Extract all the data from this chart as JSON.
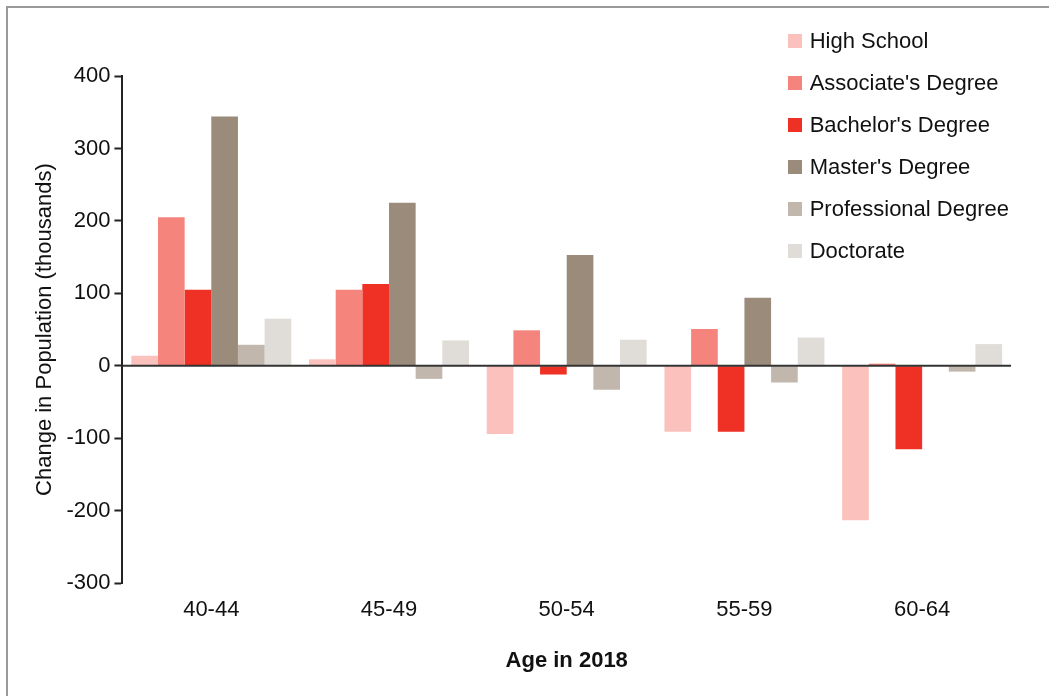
{
  "chart_data": {
    "type": "bar",
    "xlabel": "Age in 2018",
    "ylabel": "Change in Population (thousands)",
    "categories": [
      "40-44",
      "45-49",
      "50-54",
      "55-59",
      "60-64"
    ],
    "series": [
      {
        "name": "High School",
        "color": "#fbc1bd",
        "values": [
          14,
          9,
          -94,
          -91,
          -213
        ]
      },
      {
        "name": "Associate's Degree",
        "color": "#f4847c",
        "values": [
          205,
          105,
          49,
          51,
          3
        ]
      },
      {
        "name": "Bachelor's Degree",
        "color": "#ee3124",
        "values": [
          105,
          113,
          -12,
          -91,
          -115
        ]
      },
      {
        "name": "Master's Degree",
        "color": "#9a8b7b",
        "values": [
          344,
          225,
          153,
          94,
          0
        ]
      },
      {
        "name": "Professional Degree",
        "color": "#c1b7ad",
        "values": [
          29,
          -18,
          -33,
          -23,
          -8
        ]
      },
      {
        "name": "Doctorate",
        "color": "#e0dcd8",
        "values": [
          65,
          35,
          36,
          39,
          30
        ]
      }
    ],
    "ylim": [
      -300,
      400
    ],
    "yticks": [
      -300,
      -200,
      -100,
      0,
      100,
      200,
      300,
      400
    ],
    "ref_lines": [
      {
        "axis": "y",
        "value": 0,
        "color": "#333333"
      }
    ],
    "grid": false,
    "legend": "top right"
  }
}
